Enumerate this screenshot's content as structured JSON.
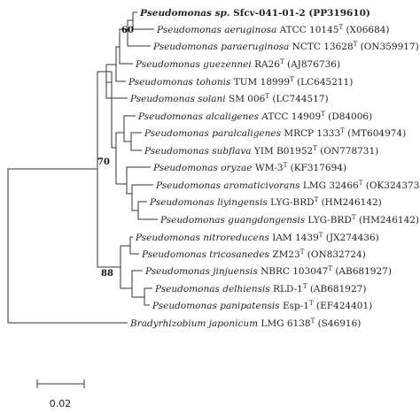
{
  "taxa": [
    {
      "id": "t1",
      "species": "Pseudomonas sp.",
      "strain": "Sfcv-041-01-2",
      "accession": "(PP319610)",
      "type_strain": false,
      "bold": true
    },
    {
      "id": "t2",
      "species": "Pseudomonas aeruginosa",
      "strain": "ATCC  10145",
      "accession": "(X06684)",
      "type_strain": true
    },
    {
      "id": "t3",
      "species": "Pseudomonas paraeruginosa",
      "strain": "NCTC  13628",
      "accession": "(ON359917)",
      "type_strain": true
    },
    {
      "id": "t4",
      "species": "Pseudomonas guezennei",
      "strain": "RA26",
      "accession": "(AJ876736)",
      "type_strain": true
    },
    {
      "id": "t5",
      "species": "Pseudomonas tohonis",
      "strain": "TUM 18999",
      "accession": "(LC645211)",
      "type_strain": true
    },
    {
      "id": "t6",
      "species": "Pseudomonas solani",
      "strain": "SM 006",
      "accession": "(LC744517)",
      "type_strain": true
    },
    {
      "id": "t7",
      "species": "Pseudomonas alcaligenes",
      "strain": "ATCC 14909",
      "accession": "(D84006)",
      "type_strain": true
    },
    {
      "id": "t8",
      "species": "Pseudomonas paralcaligenes",
      "strain": "MRCP 1333",
      "accession": "(MT604974)",
      "type_strain": true
    },
    {
      "id": "t9",
      "species": "Pseudomonas subflava",
      "strain": "YIM B01952",
      "accession": "(ON778731)",
      "type_strain": true
    },
    {
      "id": "t10",
      "species": "Pseudomonas oryzae",
      "strain": "WM-3",
      "accession": "(KF317694)",
      "type_strain": true
    },
    {
      "id": "t11",
      "species": "Pseudomonas aromaticivorans",
      "strain": "LMG 32466",
      "accession": "(OK324373)",
      "type_strain": true
    },
    {
      "id": "t12",
      "species": "Pseudomonas liyingensis",
      "strain": "LYG-BRD",
      "accession": "(HM246142)",
      "type_strain": true
    },
    {
      "id": "t13",
      "species": "Pseudomonas guangdongensis",
      "strain": "LYG-BRD",
      "accession": "(HM246142)",
      "type_strain": true
    },
    {
      "id": "t14",
      "species": "Pseudomonas nitroreducens",
      "strain": "IAM 1439",
      "accession": "(JX274436)",
      "type_strain": true
    },
    {
      "id": "t15",
      "species": "Pseudomonas tricosanedes",
      "strain": "ZM23",
      "accession": "(ON832724)",
      "type_strain": true
    },
    {
      "id": "t16",
      "species": "Pseudomonas jinjuensis",
      "strain": "NBRC 103047",
      "accession": "(AB681927)",
      "type_strain": true
    },
    {
      "id": "t17",
      "species": "Pseudomonas delhiensis",
      "strain": "RLD-1",
      "accession": "(AB681927)",
      "type_strain": true
    },
    {
      "id": "t18",
      "species": "Pseudomonas panipatensis",
      "strain": "Esp-1",
      "accession": "(EF424401)",
      "type_strain": true
    },
    {
      "id": "t19",
      "species": "Bradyrhizobium japonicum",
      "strain": "LMG 6138",
      "accession": "(S46916)",
      "type_strain": true
    }
  ],
  "type_marker": "T",
  "bootstrap": [
    {
      "node": "n60",
      "value": "60"
    },
    {
      "node": "n70",
      "value": "70"
    },
    {
      "node": "n88",
      "value": "88"
    }
  ],
  "scale_bar": {
    "label": "0.02",
    "value": 0.02
  }
}
